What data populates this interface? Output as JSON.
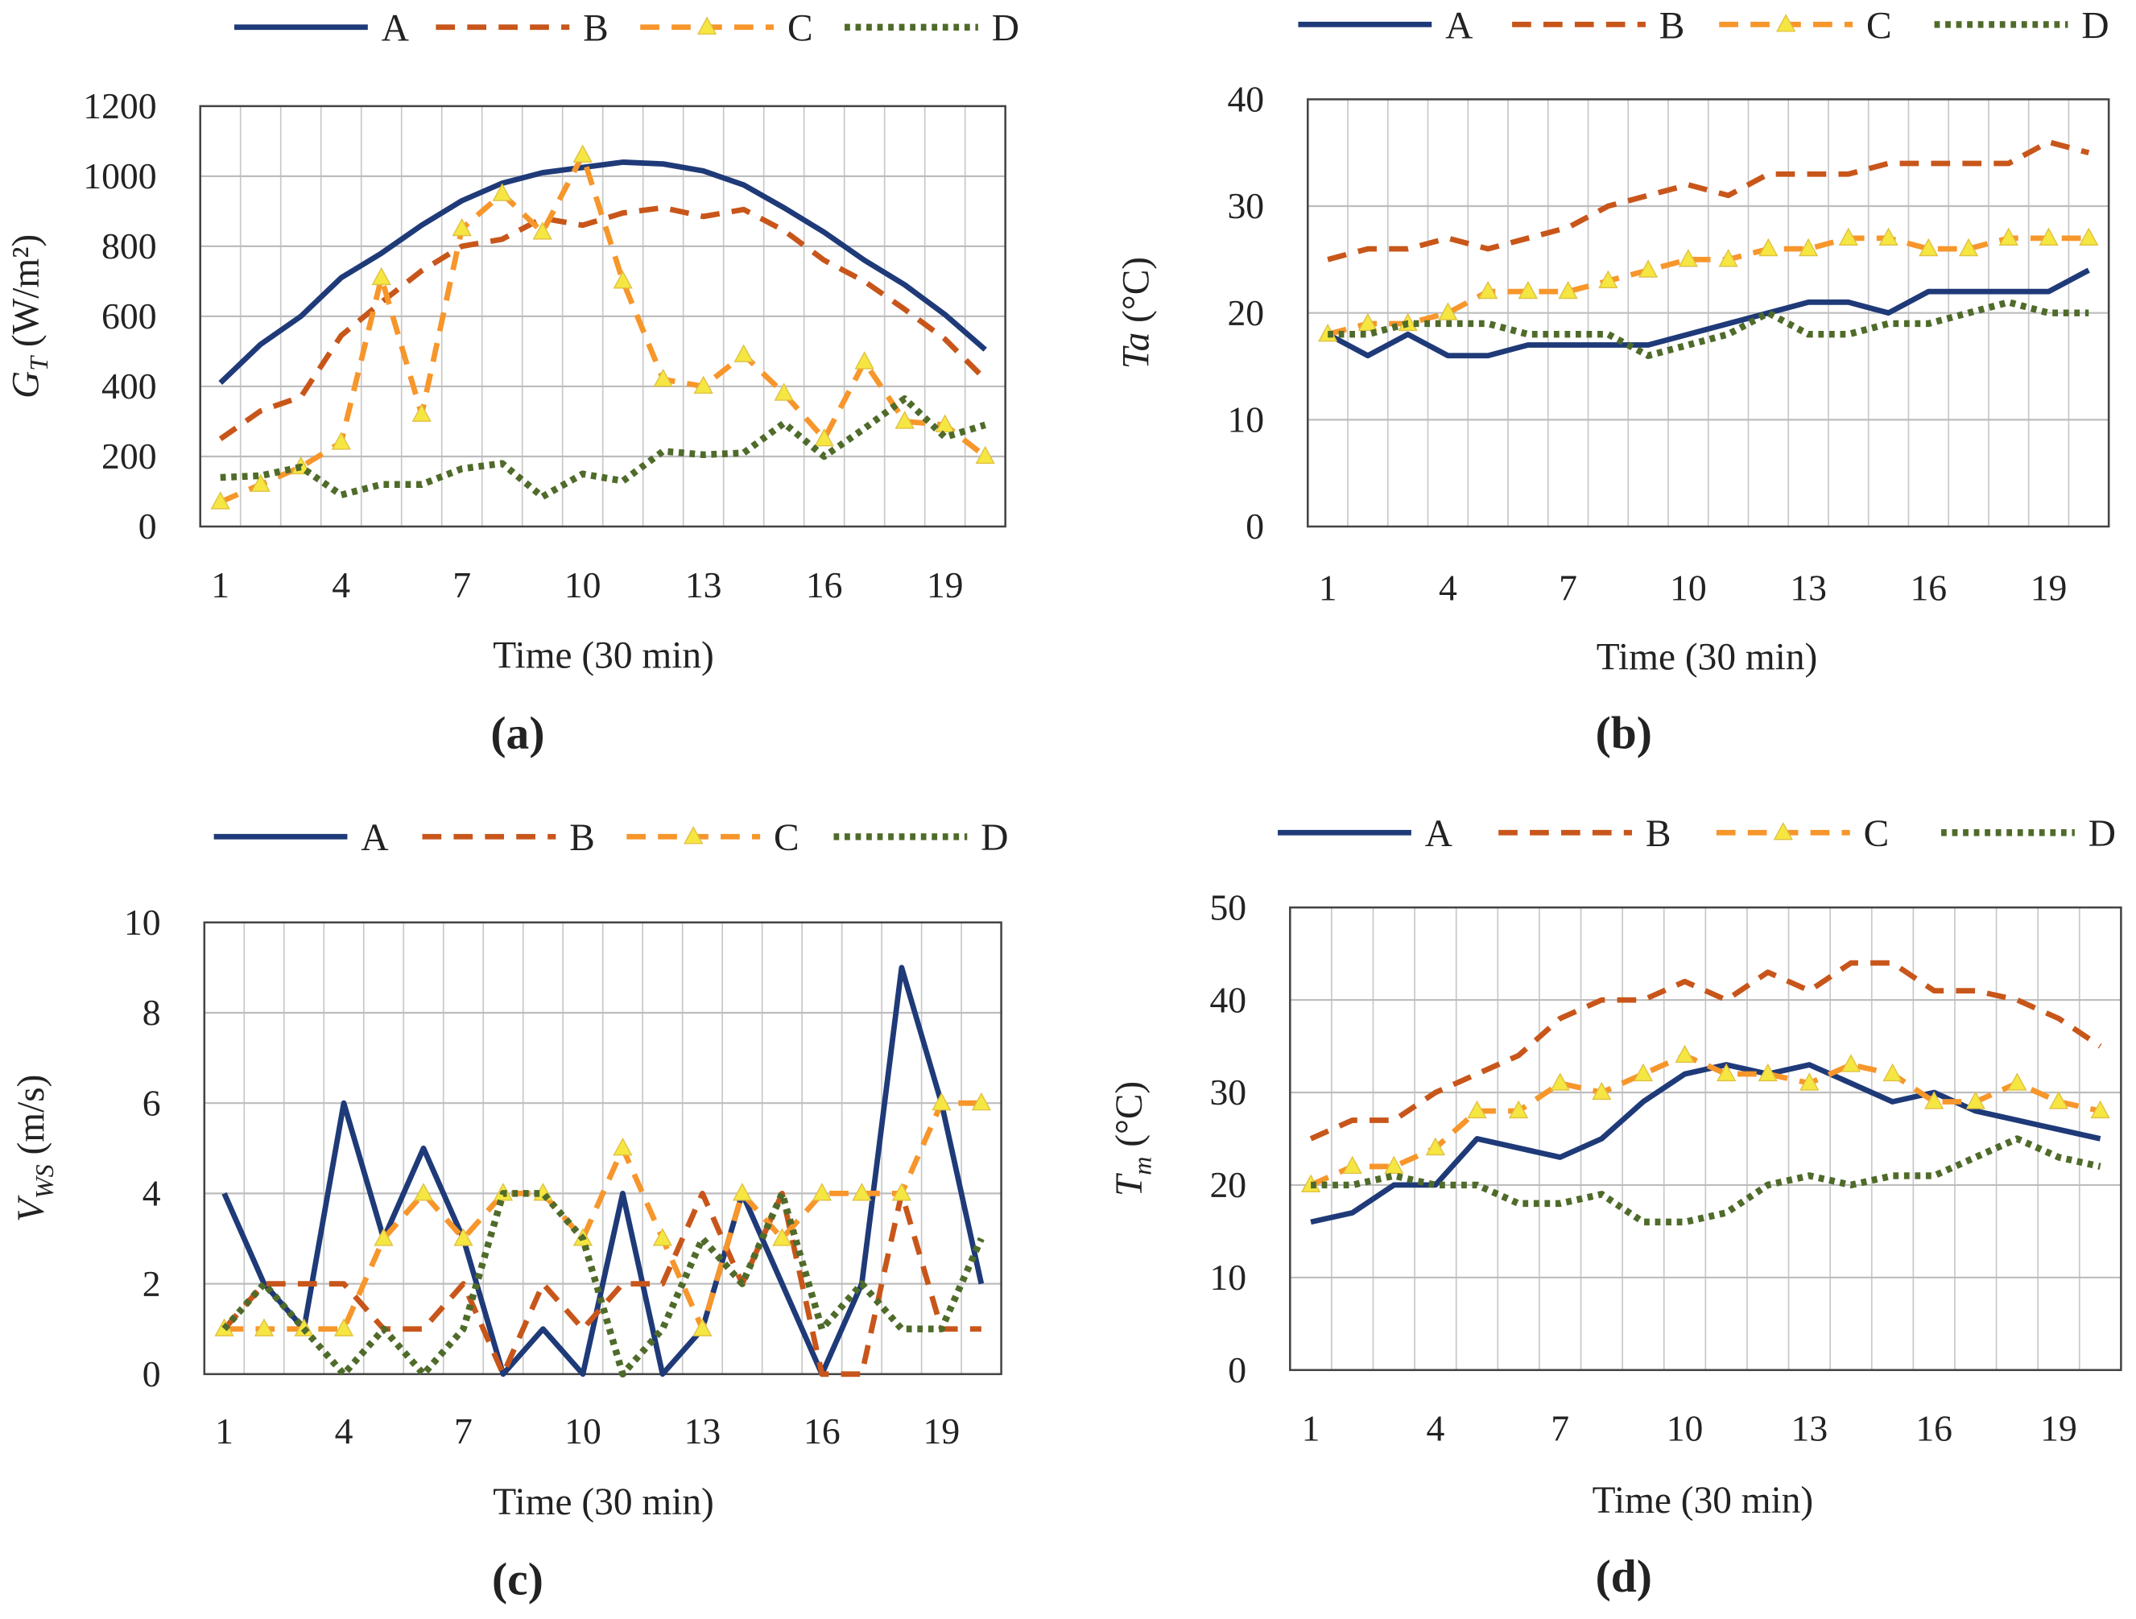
{
  "series_style": {
    "A": {
      "color": "#1f3a78",
      "dash": "solid"
    },
    "B": {
      "color": "#c8561a",
      "dash": "dashed"
    },
    "C": {
      "color": "#f7962b",
      "dash": "dashed",
      "marker": "triangle",
      "marker_color": "#f5e642"
    },
    "D": {
      "color": "#4f6b2a",
      "dash": "dotted"
    }
  },
  "chart_data": [
    {
      "type": "line",
      "panel_label": "(a)",
      "xlabel": "Time  (30 min)",
      "ylabel": {
        "main": "G",
        "sub": "T",
        "unit": "  (W/m²)"
      },
      "ylim": [
        0,
        1200
      ],
      "yticks": [
        0,
        200,
        400,
        600,
        800,
        1000,
        1200
      ],
      "x": [
        1,
        2,
        3,
        4,
        5,
        6,
        7,
        8,
        9,
        10,
        11,
        12,
        13,
        14,
        15,
        16,
        17,
        18,
        19,
        20
      ],
      "xticks": [
        1,
        4,
        7,
        10,
        13,
        16,
        19
      ],
      "grid": true,
      "legend": "top",
      "series": [
        {
          "name": "A",
          "values": [
            410,
            520,
            600,
            710,
            780,
            860,
            930,
            980,
            1010,
            1025,
            1040,
            1035,
            1015,
            975,
            910,
            840,
            760,
            690,
            605,
            505
          ]
        },
        {
          "name": "B",
          "values": [
            250,
            330,
            370,
            545,
            640,
            730,
            800,
            820,
            880,
            860,
            895,
            910,
            885,
            905,
            845,
            760,
            700,
            620,
            535,
            420
          ]
        },
        {
          "name": "C",
          "values": [
            70,
            120,
            170,
            240,
            710,
            320,
            850,
            950,
            840,
            1060,
            700,
            420,
            400,
            490,
            380,
            250,
            470,
            300,
            290,
            200
          ]
        },
        {
          "name": "D",
          "values": [
            140,
            145,
            170,
            90,
            120,
            120,
            165,
            180,
            85,
            150,
            130,
            215,
            205,
            210,
            295,
            200,
            280,
            365,
            255,
            290
          ]
        }
      ]
    },
    {
      "type": "line",
      "panel_label": "(b)",
      "xlabel": "Time (30 min)",
      "ylabel": {
        "main": "Ta",
        "sub": "",
        "unit": " (°C)"
      },
      "ylim": [
        0,
        40
      ],
      "yticks": [
        0,
        10,
        20,
        30,
        40
      ],
      "x": [
        1,
        2,
        3,
        4,
        5,
        6,
        7,
        8,
        9,
        10,
        11,
        12,
        13,
        14,
        15,
        16,
        17,
        18,
        19,
        20
      ],
      "xticks": [
        1,
        4,
        7,
        10,
        13,
        16,
        19
      ],
      "grid": true,
      "legend": "top",
      "series": [
        {
          "name": "A",
          "values": [
            18,
            16,
            18,
            16,
            16,
            17,
            17,
            17,
            17,
            18,
            19,
            20,
            21,
            21,
            20,
            22,
            22,
            22,
            22,
            24
          ]
        },
        {
          "name": "B",
          "values": [
            25,
            26,
            26,
            27,
            26,
            27,
            28,
            30,
            31,
            32,
            31,
            33,
            33,
            33,
            34,
            34,
            34,
            34,
            36,
            35
          ]
        },
        {
          "name": "C",
          "values": [
            18,
            19,
            19,
            20,
            22,
            22,
            22,
            23,
            24,
            25,
            25,
            26,
            26,
            27,
            27,
            26,
            26,
            27,
            27,
            27
          ]
        },
        {
          "name": "D",
          "values": [
            18,
            18,
            19,
            19,
            19,
            18,
            18,
            18,
            16,
            17,
            18,
            20,
            18,
            18,
            19,
            19,
            20,
            21,
            20,
            20
          ]
        }
      ]
    },
    {
      "type": "line",
      "panel_label": "(c)",
      "xlabel": "Time (30 min)",
      "ylabel": {
        "main": "V",
        "sub": "WS",
        "unit": " (m/s)"
      },
      "ylim": [
        0,
        10
      ],
      "yticks": [
        0,
        2,
        4,
        6,
        8,
        10
      ],
      "x": [
        1,
        2,
        3,
        4,
        5,
        6,
        7,
        8,
        9,
        10,
        11,
        12,
        13,
        14,
        15,
        16,
        17,
        18,
        19,
        20
      ],
      "xticks": [
        1,
        4,
        7,
        10,
        13,
        16,
        19
      ],
      "grid": true,
      "legend": "top",
      "series": [
        {
          "name": "A",
          "values": [
            4,
            2,
            1,
            6,
            3,
            5,
            3,
            0,
            1,
            0,
            4,
            0,
            1,
            4,
            2,
            0,
            2,
            9,
            6,
            2
          ]
        },
        {
          "name": "B",
          "values": [
            1,
            2,
            2,
            2,
            1,
            1,
            2,
            0,
            2,
            1,
            2,
            2,
            4,
            2,
            4,
            0,
            0,
            4,
            1,
            1
          ]
        },
        {
          "name": "C",
          "values": [
            1,
            1,
            1,
            1,
            3,
            4,
            3,
            4,
            4,
            3,
            5,
            3,
            1,
            4,
            3,
            4,
            4,
            4,
            6,
            6
          ]
        },
        {
          "name": "D",
          "values": [
            1,
            2,
            1,
            0,
            1,
            0,
            1,
            4,
            4,
            3,
            0,
            1,
            3,
            2,
            4,
            1,
            2,
            1,
            1,
            3
          ]
        }
      ]
    },
    {
      "type": "line",
      "panel_label": "(d)",
      "xlabel": "Time  (30 min)",
      "ylabel": {
        "main": "T",
        "sub": "m",
        "unit": "  (°C)"
      },
      "ylim": [
        0,
        50
      ],
      "yticks": [
        0,
        10,
        20,
        30,
        40,
        50
      ],
      "x": [
        1,
        2,
        3,
        4,
        5,
        6,
        7,
        8,
        9,
        10,
        11,
        12,
        13,
        14,
        15,
        16,
        17,
        18,
        19,
        20
      ],
      "xticks": [
        1,
        4,
        7,
        10,
        13,
        16,
        19
      ],
      "grid": true,
      "legend": "top",
      "series": [
        {
          "name": "A",
          "values": [
            16,
            17,
            20,
            20,
            25,
            24,
            23,
            25,
            29,
            32,
            33,
            32,
            33,
            31,
            29,
            30,
            28,
            27,
            26,
            25
          ]
        },
        {
          "name": "B",
          "values": [
            25,
            27,
            27,
            30,
            32,
            34,
            38,
            40,
            40,
            42,
            40,
            43,
            41,
            44,
            44,
            41,
            41,
            40,
            38,
            35
          ]
        },
        {
          "name": "C",
          "values": [
            20,
            22,
            22,
            24,
            28,
            28,
            31,
            30,
            32,
            34,
            32,
            32,
            31,
            33,
            32,
            29,
            29,
            31,
            29,
            28
          ]
        },
        {
          "name": "D",
          "values": [
            20,
            20,
            21,
            20,
            20,
            18,
            18,
            19,
            16,
            16,
            17,
            20,
            21,
            20,
            21,
            21,
            23,
            25,
            23,
            22
          ]
        }
      ]
    }
  ]
}
